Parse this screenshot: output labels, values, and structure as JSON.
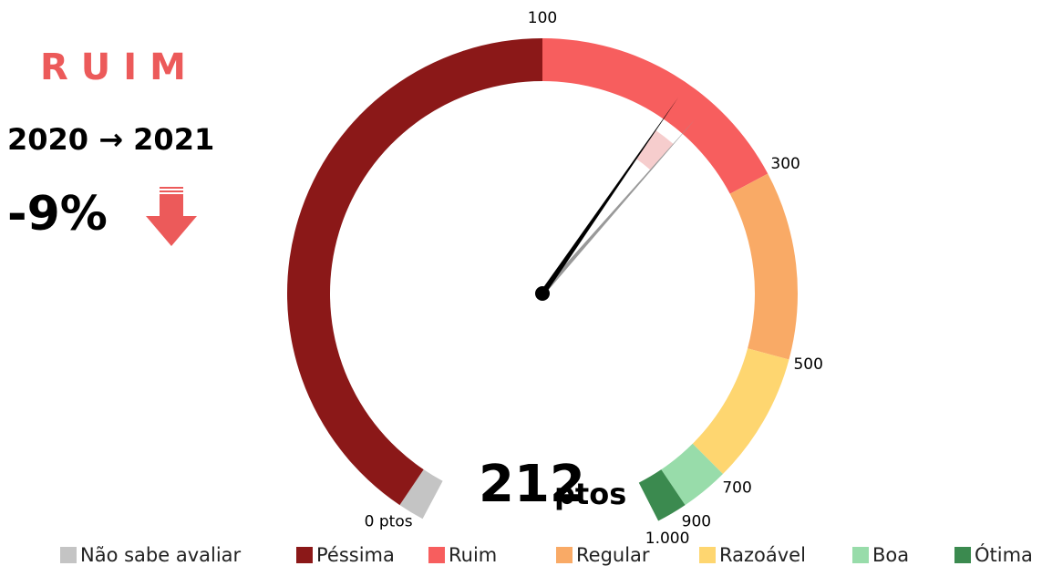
{
  "chart_data": {
    "type": "gauge",
    "rating": "RUIM",
    "period": "2020 → 2021",
    "change": "-9%",
    "value": 212,
    "previous_value": 233,
    "unit": "ptos",
    "ticks": [
      {
        "value": 0,
        "label": "0 ptos"
      },
      100,
      300,
      500,
      700,
      900,
      {
        "value": 1000,
        "label": "1.000"
      }
    ],
    "series": [
      {
        "name": "Não sabe avaliar",
        "color": "#c4c4c4"
      },
      {
        "name": "Péssima",
        "color": "#8b1818"
      },
      {
        "name": "Ruim",
        "color": "#f75e5e"
      },
      {
        "name": "Regular",
        "color": "#f9aa66"
      },
      {
        "name": "Razoável",
        "color": "#fed670"
      },
      {
        "name": "Boa",
        "color": "#98dcaa"
      },
      {
        "name": "Ótima",
        "color": "#3b8a4f"
      }
    ]
  }
}
